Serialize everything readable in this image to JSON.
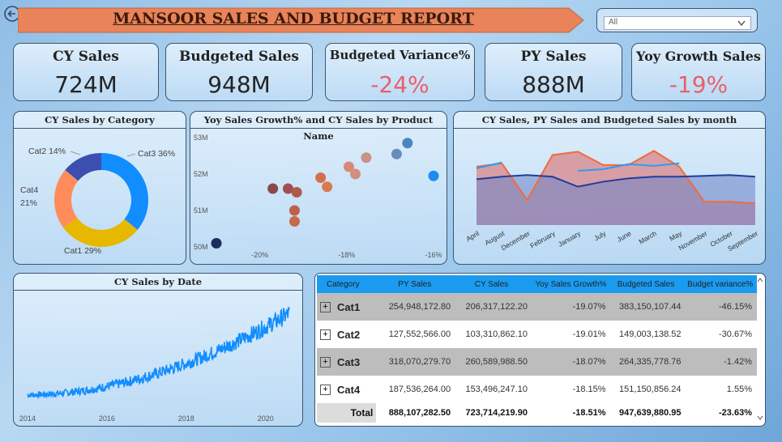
{
  "back_icon": "circle-arrow-left-icon",
  "header": {
    "title": "MANSOOR SALES AND BUDGET REPORT",
    "banner_color": "#e8835a"
  },
  "filter": {
    "value": "All",
    "icon": "chevron-down-icon"
  },
  "kpis": [
    {
      "title": "CY Sales",
      "value": "724M",
      "negative": false
    },
    {
      "title": "Budgeted Sales",
      "value": "948M",
      "negative": false
    },
    {
      "title": "Budgeted Variance%",
      "value": "-24%",
      "negative": true
    },
    {
      "title": "PY Sales",
      "value": "888M",
      "negative": false
    },
    {
      "title": "Yoy Growth Sales",
      "value": "-19%",
      "negative": true
    }
  ],
  "charts": {
    "category_title": "CY Sales by Category",
    "scatter_title": "Yoy Sales Growth% and CY Sales by Product Name",
    "month_title": "CY Sales, PY Sales and Budgeted Sales by month",
    "date_title": "CY Sales by Date"
  },
  "chart_data": [
    {
      "type": "pie",
      "title": "CY Sales by Category",
      "categories": [
        "Cat3",
        "Cat1",
        "Cat4",
        "Cat2"
      ],
      "values": [
        36,
        29,
        21,
        14
      ],
      "labels": [
        "Cat3 36%",
        "Cat1 29%",
        "Cat4 21%",
        "Cat2 14%"
      ],
      "colors": [
        "#118dff",
        "#e6b800",
        "#ff8c5a",
        "#3c4fb0"
      ]
    },
    {
      "type": "scatter",
      "title": "Yoy Sales Growth% and CY Sales by Product Name",
      "x_ticks": [
        "-20%",
        "-18%",
        "-16%"
      ],
      "y_ticks": [
        "50M",
        "51M",
        "52M",
        "53M"
      ],
      "xlim": [
        -21,
        -16
      ],
      "ylim": [
        50,
        53
      ],
      "points": [
        {
          "x": -21.0,
          "y": 50.1,
          "color": "#1c2d5c"
        },
        {
          "x": -19.7,
          "y": 51.6,
          "color": "#8b4a4a"
        },
        {
          "x": -19.35,
          "y": 51.6,
          "color": "#a05050"
        },
        {
          "x": -19.15,
          "y": 51.5,
          "color": "#b05a4a"
        },
        {
          "x": -19.2,
          "y": 51.0,
          "color": "#c0604a"
        },
        {
          "x": -19.2,
          "y": 50.7,
          "color": "#c8684c"
        },
        {
          "x": -18.6,
          "y": 51.9,
          "color": "#d2704e"
        },
        {
          "x": -18.45,
          "y": 51.65,
          "color": "#d87a52"
        },
        {
          "x": -17.95,
          "y": 52.2,
          "color": "#d88a78"
        },
        {
          "x": -17.8,
          "y": 52.0,
          "color": "#d09080"
        },
        {
          "x": -17.55,
          "y": 52.45,
          "color": "#c89288"
        },
        {
          "x": -16.85,
          "y": 52.55,
          "color": "#6a8cb8"
        },
        {
          "x": -16.6,
          "y": 52.85,
          "color": "#4a86c0"
        },
        {
          "x": -16.0,
          "y": 51.95,
          "color": "#1c8cf0"
        }
      ]
    },
    {
      "type": "area",
      "title": "CY Sales, PY Sales and Budgeted Sales by month",
      "categories": [
        "April",
        "August",
        "December",
        "February",
        "January",
        "July",
        "June",
        "March",
        "May",
        "November",
        "October",
        "September"
      ],
      "ylim": [
        0,
        100
      ],
      "series": [
        {
          "name": "CY Sales",
          "color": "#1f3d9c",
          "values": [
            55,
            58,
            60,
            58,
            46,
            52,
            56,
            58,
            58,
            59,
            60,
            58
          ]
        },
        {
          "name": "PY Sales",
          "color": "#f26b3a",
          "values": [
            70,
            74,
            30,
            84,
            88,
            72,
            72,
            89,
            70,
            28,
            28,
            26
          ]
        },
        {
          "name": "Budgeted Sales",
          "color": "#2e9cf0",
          "values": [
            68,
            75,
            null,
            null,
            65,
            67,
            73,
            71,
            74,
            null,
            null,
            null
          ]
        }
      ]
    },
    {
      "type": "line",
      "title": "CY Sales by Date",
      "x_ticks": [
        "2014",
        "2016",
        "2018",
        "2020"
      ],
      "xlim": [
        2013.9,
        2020.7
      ],
      "series": [
        {
          "color": "#118dff",
          "start": 10,
          "end": 100
        }
      ]
    },
    {
      "type": "table",
      "columns": [
        "Category",
        "PY Sales",
        "CY Sales",
        "Yoy Sales Growth%",
        "Budgeted Sales",
        "Budget variance%"
      ],
      "rows": [
        {
          "category": "Cat1",
          "py": "254,948,172.80",
          "cy": "206,317,122.20",
          "yoy": "-19.07%",
          "budget": "383,150,107.44",
          "var": "-46.15%"
        },
        {
          "category": "Cat2",
          "py": "127,552,566.00",
          "cy": "103,310,862.10",
          "yoy": "-19.01%",
          "budget": "149,003,138.52",
          "var": "-30.67%"
        },
        {
          "category": "Cat3",
          "py": "318,070,279.70",
          "cy": "260,589,988.50",
          "yoy": "-18.07%",
          "budget": "264,335,778.76",
          "var": "-1.42%"
        },
        {
          "category": "Cat4",
          "py": "187,536,264.00",
          "cy": "153,496,247.10",
          "yoy": "-18.15%",
          "budget": "151,150,856.24",
          "var": "1.55%"
        }
      ],
      "total": {
        "category": "Total",
        "py": "888,107,282.50",
        "cy": "723,714,219.90",
        "yoy": "-18.51%",
        "budget": "947,639,880.95",
        "var": "-23.63%"
      },
      "expand_glyph": "+"
    }
  ]
}
